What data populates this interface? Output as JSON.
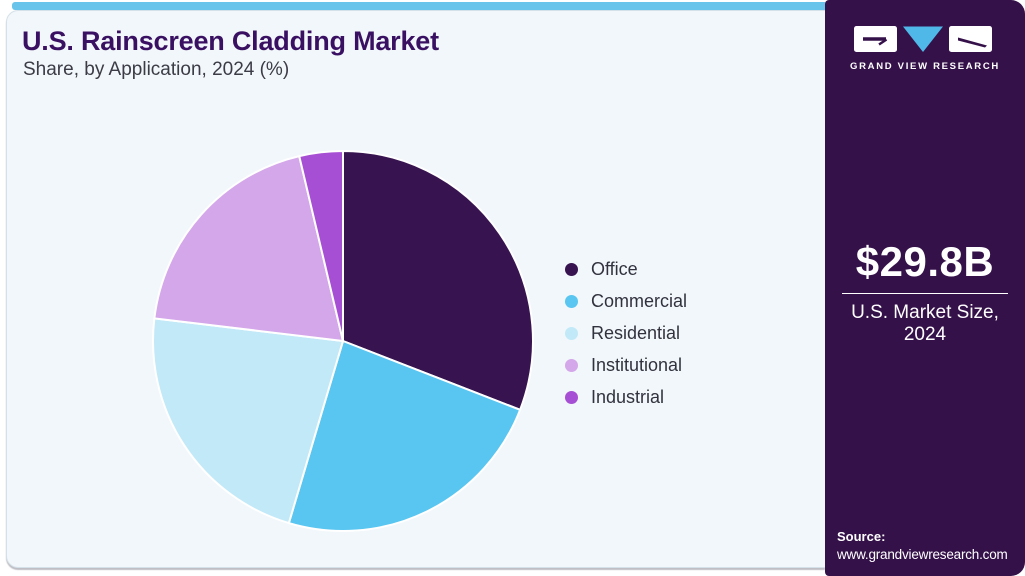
{
  "page": {
    "title": "U.S. Rainscreen Cladding Market",
    "subtitle": "Share, by Application, 2024 (%)"
  },
  "chart_data": {
    "type": "pie",
    "title": "U.S. Rainscreen Cladding Market Share, by Application, 2024 (%)",
    "unit": "%",
    "start_angle_deg": 0,
    "direction": "clockwise",
    "legend_position": "right",
    "segments": [
      {
        "label": "Office",
        "value": 30.9,
        "color": "#371450"
      },
      {
        "label": "Commercial",
        "value": 23.7,
        "color": "#58c6f1"
      },
      {
        "label": "Residential",
        "value": 22.3,
        "color": "#c2e9f8"
      },
      {
        "label": "Institutional",
        "value": 19.4,
        "color": "#d4a6ea"
      },
      {
        "label": "Industrial",
        "value": 3.7,
        "color": "#a74fd4"
      }
    ]
  },
  "sidebar": {
    "brand": "GRAND VIEW RESEARCH",
    "market_size_value": "$29.8B",
    "market_size_label_line1": "U.S. Market Size,",
    "market_size_label_line2": "2024",
    "source_label": "Source:",
    "source_url": "www.grandviewresearch.com"
  },
  "colors": {
    "accent_bar": "#68c4ea",
    "panel_background": "#f1f7fa",
    "sidebar_background": "#35114a",
    "title_text": "#3a1162",
    "subtitle_text": "#3c3c46",
    "legend_text": "#32323e",
    "logo_triangle": "#4fb8e8",
    "slice_stroke": "#ffffff"
  }
}
